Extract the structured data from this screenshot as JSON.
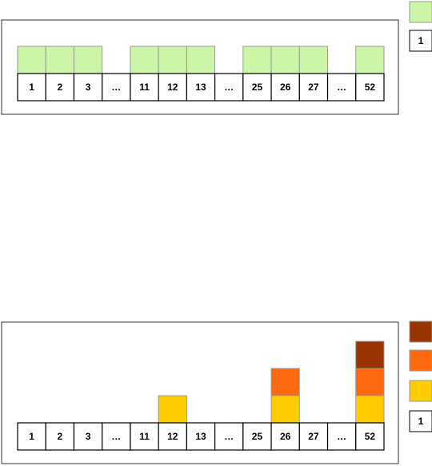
{
  "top_row": {
    "cells": [
      "1",
      "2",
      "3",
      "…",
      "11",
      "12",
      "13",
      "…",
      "25",
      "26",
      "27",
      "…",
      "52"
    ]
  },
  "top_legend": {
    "sample": "1"
  },
  "bottom_row": {
    "cells": [
      "1",
      "2",
      "3",
      "…",
      "11",
      "12",
      "13",
      "…",
      "25",
      "26",
      "27",
      "…",
      "52"
    ]
  },
  "bottom_legend": {
    "sample": "1"
  }
}
